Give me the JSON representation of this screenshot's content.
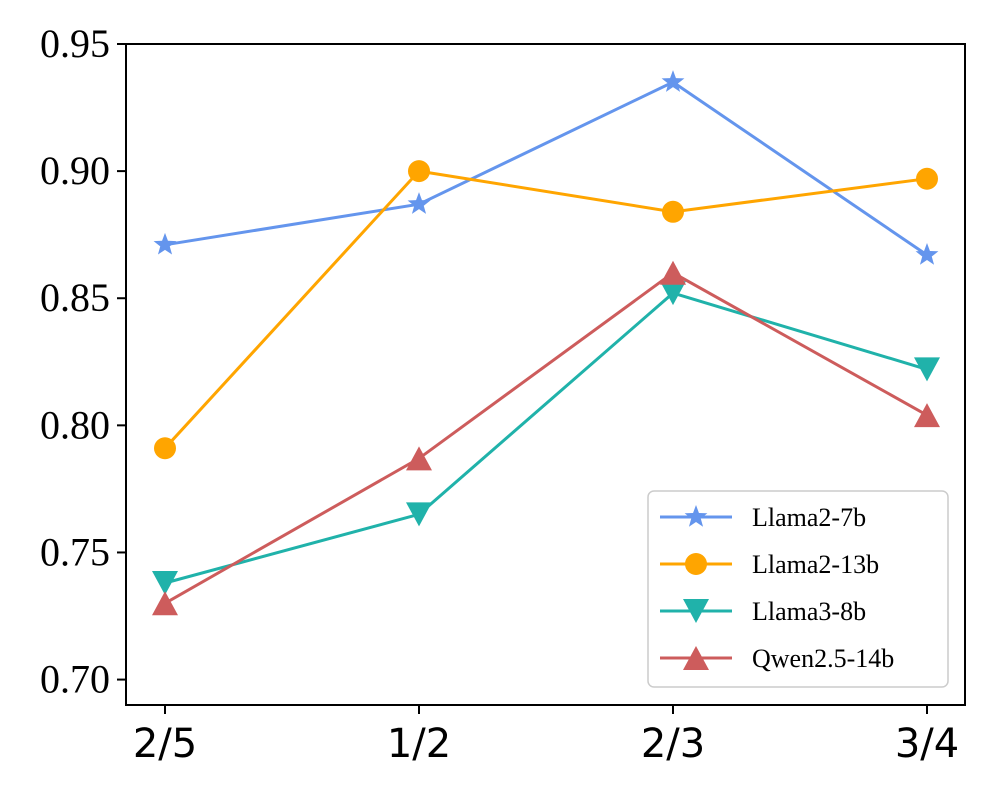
{
  "chart_data": {
    "type": "line",
    "title": "",
    "xlabel": "",
    "ylabel": "",
    "categories": [
      "2/5",
      "1/2",
      "2/3",
      "3/4"
    ],
    "ylim": [
      0.69,
      0.95
    ],
    "yticks": [
      0.7,
      0.75,
      0.8,
      0.85,
      0.9,
      0.95
    ],
    "ytick_labels": [
      "0.70",
      "0.75",
      "0.80",
      "0.85",
      "0.90",
      "0.95"
    ],
    "grid": false,
    "legend_position": "bottom-right",
    "series": [
      {
        "name": "Llama2-7b",
        "color": "#6495ED",
        "marker": "star",
        "values": [
          0.871,
          0.887,
          0.935,
          0.867
        ]
      },
      {
        "name": "Llama2-13b",
        "color": "#FFA500",
        "marker": "circle",
        "values": [
          0.791,
          0.9,
          0.884,
          0.897
        ]
      },
      {
        "name": "Llama3-8b",
        "color": "#20B2AA",
        "marker": "triangle-down",
        "values": [
          0.738,
          0.765,
          0.852,
          0.822
        ]
      },
      {
        "name": "Qwen2.5-14b",
        "color": "#CD5C5C",
        "marker": "triangle-up",
        "values": [
          0.73,
          0.787,
          0.86,
          0.804
        ]
      }
    ]
  }
}
